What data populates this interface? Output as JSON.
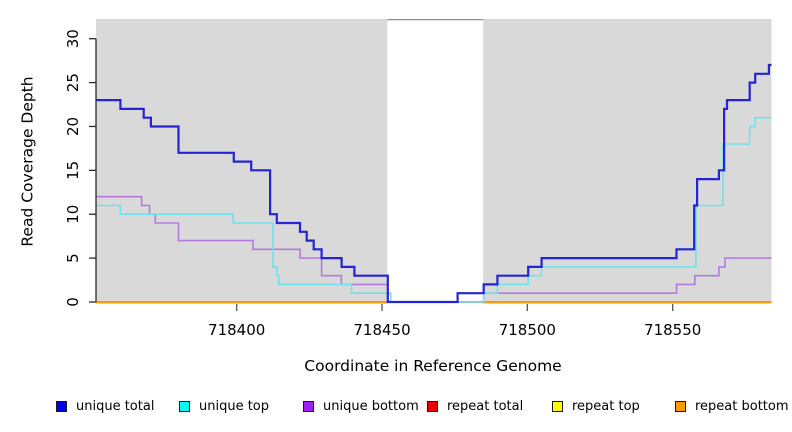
{
  "chart_data": {
    "type": "line",
    "step": true,
    "title": "",
    "xlabel": "Coordinate in Reference Genome",
    "ylabel": "Read Coverage Depth",
    "x_ticks": [
      718400,
      718450,
      718500,
      718550
    ],
    "y_ticks": [
      0,
      5,
      10,
      15,
      20,
      25,
      30
    ],
    "xlim": [
      718351.6,
      718584.0
    ],
    "ylim": [
      0,
      32.2
    ],
    "grid": "off",
    "legend_position": "bottom",
    "plot_background": "#d9d9d9",
    "gap_band": {
      "from": 718451.8,
      "to": 718484.8,
      "color": "#ffffff",
      "top_border_color": "#8f8f8f"
    },
    "axis_color": "#2b2b2b",
    "series": [
      {
        "name": "unique total",
        "line_color": "#2424d4",
        "swatch_color": "#0000ee",
        "line_width": 2.2,
        "points": [
          [
            718351.6,
            23
          ],
          [
            718360,
            22
          ],
          [
            718368,
            21
          ],
          [
            718370.5,
            20
          ],
          [
            718380,
            17
          ],
          [
            718399,
            16
          ],
          [
            718405,
            15
          ],
          [
            718411.5,
            10
          ],
          [
            718413.8,
            9
          ],
          [
            718421.8,
            8
          ],
          [
            718424.1,
            7
          ],
          [
            718426.5,
            6
          ],
          [
            718429.2,
            5
          ],
          [
            718436.1,
            4
          ],
          [
            718440.5,
            3
          ],
          [
            718452,
            0
          ],
          [
            718476,
            1
          ],
          [
            718485,
            2
          ],
          [
            718489.7,
            3
          ],
          [
            718500.3,
            4
          ],
          [
            718504.9,
            5
          ],
          [
            718551.3,
            6
          ],
          [
            718557.4,
            11
          ],
          [
            718558.4,
            14
          ],
          [
            718565.9,
            15
          ],
          [
            718567.7,
            22
          ],
          [
            718568.7,
            23
          ],
          [
            718576.5,
            25
          ],
          [
            718578.4,
            26
          ],
          [
            718583.1,
            27
          ]
        ]
      },
      {
        "name": "unique top",
        "line_color": "#6fe2ec",
        "swatch_color": "#00ffff",
        "line_width": 1.6,
        "points": [
          [
            718351.6,
            11
          ],
          [
            718360,
            10
          ],
          [
            718398.8,
            9
          ],
          [
            718412.5,
            4
          ],
          [
            718413.8,
            3
          ],
          [
            718414.5,
            2
          ],
          [
            718439.5,
            1
          ],
          [
            718453,
            0
          ],
          [
            718485,
            1
          ],
          [
            718489.7,
            2
          ],
          [
            718500.3,
            3
          ],
          [
            718504.9,
            4
          ],
          [
            718558,
            11
          ],
          [
            718567.3,
            18
          ],
          [
            718576.5,
            20
          ],
          [
            718578.3,
            21
          ]
        ]
      },
      {
        "name": "unique bottom",
        "line_color": "#b57ae0",
        "swatch_color": "#a020f0",
        "line_width": 1.6,
        "points": [
          [
            718351.6,
            12
          ],
          [
            718367.3,
            11
          ],
          [
            718370,
            10
          ],
          [
            718372,
            9
          ],
          [
            718380,
            7
          ],
          [
            718405.6,
            6
          ],
          [
            718421.8,
            5
          ],
          [
            718429.2,
            3
          ],
          [
            718436,
            2
          ],
          [
            718452,
            0
          ],
          [
            718485,
            1
          ],
          [
            718551.3,
            2
          ],
          [
            718557.6,
            3
          ],
          [
            718565.9,
            4
          ],
          [
            718568,
            5
          ]
        ]
      },
      {
        "name": "repeat total",
        "line_color": "#dd0000",
        "swatch_color": "#ee0000",
        "line_width": 1.6,
        "points": [
          [
            718351.6,
            0
          ]
        ]
      },
      {
        "name": "repeat top",
        "line_color": "#ffff00",
        "swatch_color": "#ffff00",
        "line_width": 1.6,
        "points": [
          [
            718351.6,
            0
          ]
        ]
      },
      {
        "name": "repeat bottom",
        "line_color": "#ff9802",
        "swatch_color": "#ff9900",
        "line_width": 2,
        "points": [
          [
            718351.6,
            0
          ]
        ]
      }
    ],
    "draw_order": [
      "repeat total",
      "repeat top",
      "repeat bottom",
      "unique bottom",
      "unique top",
      "unique total"
    ]
  }
}
